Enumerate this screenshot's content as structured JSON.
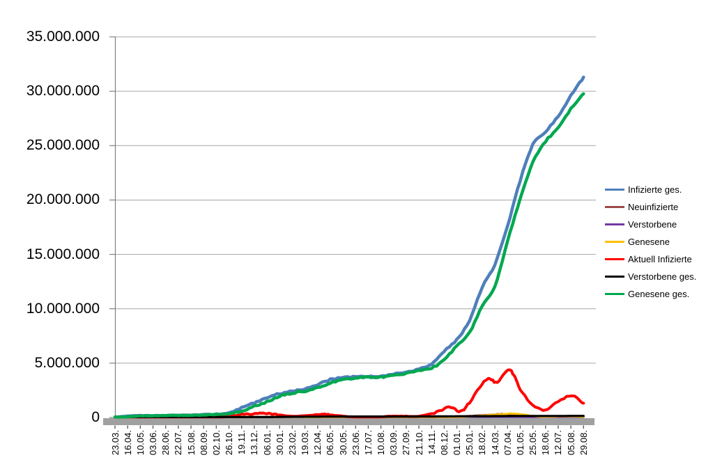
{
  "chart_data": {
    "type": "line",
    "title": "",
    "grid": true,
    "legend_position": "right",
    "y_axis": {
      "min": 0,
      "max": 35000000,
      "step": 5000000,
      "tick_labels": [
        "0",
        "5.000.000",
        "10.000.000",
        "15.000.000",
        "20.000.000",
        "25.000.000",
        "30.000.000",
        "35.000.000"
      ]
    },
    "x_axis": {
      "label_interval_days": 24,
      "labels": [
        "23.03.",
        "16.04.",
        "10.05.",
        "03.06.",
        "28.06.",
        "22.07.",
        "15.08.",
        "08.09.",
        "02.10.",
        "26.10.",
        "19.11.",
        "13.12.",
        "06.01.",
        "30.01.",
        "23.02.",
        "19.03.",
        "12.04.",
        "06.05.",
        "30.05.",
        "23.06.",
        "17.07.",
        "10.08.",
        "03.09.",
        "27.09.",
        "21.10.",
        "14.11.",
        "08.12.",
        "01.01.",
        "25.01.",
        "18.02.",
        "14.03.",
        "07.04.",
        "01.05.",
        "25.05.",
        "18.06.",
        "12.07.",
        "05.08.",
        "29.08."
      ]
    },
    "style": {
      "axis": "#808080",
      "gridline": "#A6A6A6",
      "baseline_bar": "#A0A0A0",
      "tick": "#595959",
      "background": "#FFFFFF"
    },
    "series": [
      {
        "name": "Infizierte ges.",
        "color": "#4E7FBA",
        "width": 4.5,
        "noise": 1.1,
        "points": [
          [
            0,
            30000
          ],
          [
            1,
            135000
          ],
          [
            2,
            170000
          ],
          [
            3,
            183000
          ],
          [
            4,
            194000
          ],
          [
            5,
            204000
          ],
          [
            6,
            225000
          ],
          [
            7,
            255000
          ],
          [
            8,
            295000
          ],
          [
            9,
            440000
          ],
          [
            10,
            900000
          ],
          [
            11,
            1350000
          ],
          [
            12,
            1850000
          ],
          [
            13,
            2210000
          ],
          [
            14,
            2400000
          ],
          [
            15,
            2650000
          ],
          [
            16,
            3050000
          ],
          [
            17,
            3480000
          ],
          [
            18,
            3680000
          ],
          [
            19,
            3730000
          ],
          [
            20,
            3760000
          ],
          [
            21,
            3800000
          ],
          [
            22,
            4000000
          ],
          [
            23,
            4170000
          ],
          [
            24,
            4440000
          ],
          [
            25,
            4900000
          ],
          [
            26,
            6100000
          ],
          [
            27,
            7200000
          ],
          [
            28,
            8900000
          ],
          [
            29,
            12000000
          ],
          [
            30,
            14100000
          ],
          [
            31,
            17600000
          ],
          [
            32,
            21800000
          ],
          [
            33,
            25100000
          ],
          [
            34,
            26300000
          ],
          [
            35,
            27700000
          ],
          [
            36,
            29600000
          ],
          [
            37,
            31300000
          ]
        ]
      },
      {
        "name": "Neuinfizierte",
        "color": "#9C4A47",
        "width": 3,
        "noise": 0.6,
        "points": [
          [
            0,
            4000
          ],
          [
            1,
            2500
          ],
          [
            2,
            1000
          ],
          [
            3,
            500
          ],
          [
            4,
            400
          ],
          [
            5,
            500
          ],
          [
            6,
            1200
          ],
          [
            7,
            1400
          ],
          [
            8,
            2500
          ],
          [
            9,
            12000
          ],
          [
            10,
            20000
          ],
          [
            11,
            25000
          ],
          [
            12,
            22000
          ],
          [
            13,
            12000
          ],
          [
            14,
            8000
          ],
          [
            15,
            13000
          ],
          [
            16,
            20000
          ],
          [
            17,
            18000
          ],
          [
            18,
            6000
          ],
          [
            19,
            1500
          ],
          [
            20,
            1200
          ],
          [
            21,
            4000
          ],
          [
            22,
            9000
          ],
          [
            23,
            7500
          ],
          [
            24,
            13000
          ],
          [
            25,
            40000
          ],
          [
            26,
            60000
          ],
          [
            27,
            45000
          ],
          [
            28,
            140000
          ],
          [
            29,
            210000
          ],
          [
            29.8,
            250000
          ],
          [
            30.5,
            320000
          ],
          [
            31,
            250000
          ],
          [
            32,
            130000
          ],
          [
            33,
            55000
          ],
          [
            34,
            90000
          ],
          [
            35,
            125000
          ],
          [
            36,
            70000
          ],
          [
            37,
            40000
          ]
        ]
      },
      {
        "name": "Verstorbene",
        "color": "#7339A3",
        "width": 3,
        "noise": 0,
        "points": [
          [
            0,
            100
          ],
          [
            5,
            120
          ],
          [
            10,
            200
          ],
          [
            11,
            600
          ],
          [
            12,
            900
          ],
          [
            13,
            800
          ],
          [
            14,
            500
          ],
          [
            15,
            300
          ],
          [
            16,
            300
          ],
          [
            17,
            280
          ],
          [
            18,
            200
          ],
          [
            19,
            100
          ],
          [
            20,
            50
          ],
          [
            21,
            40
          ],
          [
            22,
            60
          ],
          [
            23,
            70
          ],
          [
            24,
            90
          ],
          [
            25,
            200
          ],
          [
            26,
            400
          ],
          [
            27,
            350
          ],
          [
            28,
            200
          ],
          [
            29,
            250
          ],
          [
            30,
            300
          ],
          [
            31,
            300
          ],
          [
            32,
            200
          ],
          [
            33,
            150
          ],
          [
            34,
            100
          ],
          [
            35,
            130
          ],
          [
            36,
            150
          ],
          [
            37,
            100
          ]
        ]
      },
      {
        "name": "Genesene",
        "color": "#FFC000",
        "width": 3,
        "noise": 0.6,
        "points": [
          [
            0,
            300
          ],
          [
            1,
            3000
          ],
          [
            2,
            2500
          ],
          [
            3,
            800
          ],
          [
            4,
            400
          ],
          [
            5,
            400
          ],
          [
            6,
            800
          ],
          [
            7,
            1200
          ],
          [
            8,
            1800
          ],
          [
            9,
            6000
          ],
          [
            10,
            16000
          ],
          [
            11,
            23000
          ],
          [
            12,
            25000
          ],
          [
            13,
            16000
          ],
          [
            14,
            9000
          ],
          [
            15,
            10000
          ],
          [
            16,
            18000
          ],
          [
            17,
            19000
          ],
          [
            18,
            10000
          ],
          [
            19,
            3000
          ],
          [
            20,
            1300
          ],
          [
            21,
            2500
          ],
          [
            22,
            7000
          ],
          [
            23,
            8000
          ],
          [
            24,
            10000
          ],
          [
            25,
            25000
          ],
          [
            26,
            50000
          ],
          [
            27,
            55000
          ],
          [
            28,
            90000
          ],
          [
            29,
            170000
          ],
          [
            30,
            260000
          ],
          [
            30.8,
            330000
          ],
          [
            31.5,
            360000
          ],
          [
            32,
            300000
          ],
          [
            33,
            150000
          ],
          [
            34,
            70000
          ],
          [
            35,
            100000
          ],
          [
            36,
            110000
          ],
          [
            37,
            60000
          ]
        ]
      },
      {
        "name": "Aktuell Infizierte",
        "color": "#FF0000",
        "width": 4,
        "noise": 1.2,
        "points": [
          [
            0,
            25000
          ],
          [
            0.4,
            68000
          ],
          [
            1,
            55000
          ],
          [
            1.5,
            30000
          ],
          [
            2,
            17000
          ],
          [
            3,
            9000
          ],
          [
            4,
            7000
          ],
          [
            5,
            9500
          ],
          [
            6,
            15000
          ],
          [
            7,
            18000
          ],
          [
            8,
            28000
          ],
          [
            9,
            95000
          ],
          [
            10,
            290000
          ],
          [
            11,
            330000
          ],
          [
            11.7,
            390000
          ],
          [
            12.4,
            330000
          ],
          [
            13,
            230000
          ],
          [
            14,
            128000
          ],
          [
            15,
            155000
          ],
          [
            16,
            248000
          ],
          [
            16.7,
            283000
          ],
          [
            17,
            250000
          ],
          [
            18,
            115000
          ],
          [
            19,
            42000
          ],
          [
            20,
            26000
          ],
          [
            21,
            58000
          ],
          [
            22,
            128000
          ],
          [
            23,
            115000
          ],
          [
            24,
            125000
          ],
          [
            25,
            330000
          ],
          [
            26,
            800000
          ],
          [
            26.6,
            970000
          ],
          [
            27.3,
            540000
          ],
          [
            28,
            1400000
          ],
          [
            29,
            3100000
          ],
          [
            29.6,
            3560000
          ],
          [
            30.2,
            3230000
          ],
          [
            31,
            4420000
          ],
          [
            31.5,
            3900000
          ],
          [
            32,
            2600000
          ],
          [
            33,
            1150000
          ],
          [
            34,
            660000
          ],
          [
            35,
            1500000
          ],
          [
            36.1,
            1980000
          ],
          [
            37,
            1300000
          ]
        ]
      },
      {
        "name": "Verstorbene ges.",
        "color": "#000000",
        "width": 3.2,
        "noise": 0,
        "points": [
          [
            0,
            500
          ],
          [
            1,
            4000
          ],
          [
            2,
            7500
          ],
          [
            3,
            8600
          ],
          [
            4,
            8900
          ],
          [
            5,
            9100
          ],
          [
            6,
            9200
          ],
          [
            7,
            9300
          ],
          [
            8,
            9500
          ],
          [
            9,
            10000
          ],
          [
            10,
            13000
          ],
          [
            11,
            21000
          ],
          [
            12,
            36000
          ],
          [
            13,
            56000
          ],
          [
            14,
            68000
          ],
          [
            15,
            74000
          ],
          [
            16,
            78500
          ],
          [
            17,
            84000
          ],
          [
            18,
            88000
          ],
          [
            19,
            90000
          ],
          [
            20,
            91300
          ],
          [
            21,
            91800
          ],
          [
            22,
            92200
          ],
          [
            23,
            93000
          ],
          [
            24,
            94800
          ],
          [
            25,
            98000
          ],
          [
            26,
            104000
          ],
          [
            27,
            112000
          ],
          [
            28,
            117000
          ],
          [
            29,
            121000
          ],
          [
            30,
            126000
          ],
          [
            31,
            132000
          ],
          [
            32,
            135000
          ],
          [
            33,
            138000
          ],
          [
            34,
            140000
          ],
          [
            35,
            142000
          ],
          [
            36,
            145000
          ],
          [
            37,
            147000
          ]
        ]
      },
      {
        "name": "Genesene ges.",
        "color": "#00A850",
        "width": 4.5,
        "noise": 1.1,
        "points": [
          [
            0,
            10000
          ],
          [
            1,
            77000
          ],
          [
            2,
            150000
          ],
          [
            3,
            168000
          ],
          [
            4,
            180000
          ],
          [
            5,
            190000
          ],
          [
            6,
            205000
          ],
          [
            7,
            230000
          ],
          [
            8,
            262000
          ],
          [
            9,
            335000
          ],
          [
            10,
            580000
          ],
          [
            11,
            1020000
          ],
          [
            12,
            1440000
          ],
          [
            13,
            1970000
          ],
          [
            14,
            2250000
          ],
          [
            15,
            2430000
          ],
          [
            16,
            2730000
          ],
          [
            17,
            3160000
          ],
          [
            18,
            3500000
          ],
          [
            19,
            3640000
          ],
          [
            20,
            3700000
          ],
          [
            21,
            3730000
          ],
          [
            22,
            3880000
          ],
          [
            23,
            4060000
          ],
          [
            24,
            4290000
          ],
          [
            25,
            4560000
          ],
          [
            26,
            5300000
          ],
          [
            27,
            6600000
          ],
          [
            28,
            7800000
          ],
          [
            29,
            10300000
          ],
          [
            30,
            12100000
          ],
          [
            31,
            16200000
          ],
          [
            32,
            20100000
          ],
          [
            33,
            23500000
          ],
          [
            34,
            25400000
          ],
          [
            35,
            26600000
          ],
          [
            36,
            28400000
          ],
          [
            37,
            29800000
          ]
        ]
      }
    ]
  }
}
